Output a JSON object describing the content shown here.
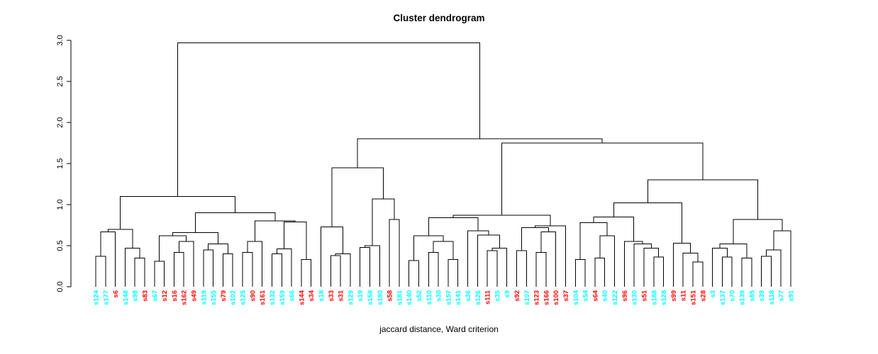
{
  "chart_data": {
    "type": "dendrogram",
    "title": "Cluster dendrogram",
    "xlabel": "jaccard distance, Ward criterion",
    "ylabel": "",
    "ylim": [
      0,
      3
    ],
    "yticks": [
      0,
      0.5,
      1,
      1.5,
      2,
      2.5,
      3
    ],
    "grid": false,
    "line_color": "#000000",
    "label_colors": {
      "group1": "#FF0000",
      "group2": "#00FFFF"
    },
    "leaves": [
      {
        "label": "s124",
        "color": "#00FFFF"
      },
      {
        "label": "s177",
        "color": "#00FFFF"
      },
      {
        "label": "s6",
        "color": "#FF0000"
      },
      {
        "label": "s148",
        "color": "#00FFFF"
      },
      {
        "label": "s98",
        "color": "#00FFFF"
      },
      {
        "label": "s83",
        "color": "#FF0000"
      },
      {
        "label": "s67",
        "color": "#00FFFF"
      },
      {
        "label": "s12",
        "color": "#FF0000"
      },
      {
        "label": "s16",
        "color": "#FF0000"
      },
      {
        "label": "s162",
        "color": "#FF0000"
      },
      {
        "label": "s49",
        "color": "#FF0000"
      },
      {
        "label": "s119",
        "color": "#00FFFF"
      },
      {
        "label": "s155",
        "color": "#00FFFF"
      },
      {
        "label": "s79",
        "color": "#FF0000"
      },
      {
        "label": "s102",
        "color": "#00FFFF"
      },
      {
        "label": "s125",
        "color": "#00FFFF"
      },
      {
        "label": "s90",
        "color": "#FF0000"
      },
      {
        "label": "s161",
        "color": "#FF0000"
      },
      {
        "label": "s132",
        "color": "#00FFFF"
      },
      {
        "label": "s159",
        "color": "#00FFFF"
      },
      {
        "label": "s66",
        "color": "#00FFFF"
      },
      {
        "label": "s144",
        "color": "#FF0000"
      },
      {
        "label": "s34",
        "color": "#FF0000"
      },
      {
        "label": "s18",
        "color": "#00FFFF"
      },
      {
        "label": "s33",
        "color": "#FF0000"
      },
      {
        "label": "s31",
        "color": "#FF0000"
      },
      {
        "label": "s129",
        "color": "#00FFFF"
      },
      {
        "label": "s19",
        "color": "#00FFFF"
      },
      {
        "label": "s158",
        "color": "#00FFFF"
      },
      {
        "label": "s180",
        "color": "#00FFFF"
      },
      {
        "label": "s58",
        "color": "#FF0000"
      },
      {
        "label": "s181",
        "color": "#00FFFF"
      },
      {
        "label": "s140",
        "color": "#00FFFF"
      },
      {
        "label": "s52",
        "color": "#00FFFF"
      },
      {
        "label": "s110",
        "color": "#00FFFF"
      },
      {
        "label": "s30",
        "color": "#00FFFF"
      },
      {
        "label": "s157",
        "color": "#00FFFF"
      },
      {
        "label": "s141",
        "color": "#00FFFF"
      },
      {
        "label": "s36",
        "color": "#00FFFF"
      },
      {
        "label": "s126",
        "color": "#00FFFF"
      },
      {
        "label": "s111",
        "color": "#FF0000"
      },
      {
        "label": "s35",
        "color": "#00FFFF"
      },
      {
        "label": "s9",
        "color": "#00FFFF"
      },
      {
        "label": "s92",
        "color": "#FF0000"
      },
      {
        "label": "s107",
        "color": "#00FFFF"
      },
      {
        "label": "s123",
        "color": "#FF0000"
      },
      {
        "label": "s166",
        "color": "#FF0000"
      },
      {
        "label": "s100",
        "color": "#FF0000"
      },
      {
        "label": "s37",
        "color": "#FF0000"
      },
      {
        "label": "s104",
        "color": "#00FFFF"
      },
      {
        "label": "s54",
        "color": "#00FFFF"
      },
      {
        "label": "s64",
        "color": "#FF0000"
      },
      {
        "label": "s40",
        "color": "#00FFFF"
      },
      {
        "label": "s122",
        "color": "#00FFFF"
      },
      {
        "label": "s96",
        "color": "#FF0000"
      },
      {
        "label": "s130",
        "color": "#00FFFF"
      },
      {
        "label": "s51",
        "color": "#FF0000"
      },
      {
        "label": "s188",
        "color": "#00FFFF"
      },
      {
        "label": "s128",
        "color": "#00FFFF"
      },
      {
        "label": "s99",
        "color": "#FF0000"
      },
      {
        "label": "s11",
        "color": "#FF0000"
      },
      {
        "label": "s151",
        "color": "#FF0000"
      },
      {
        "label": "s28",
        "color": "#FF0000"
      },
      {
        "label": "s3",
        "color": "#00FFFF"
      },
      {
        "label": "s137",
        "color": "#00FFFF"
      },
      {
        "label": "s70",
        "color": "#00FFFF"
      },
      {
        "label": "s139",
        "color": "#00FFFF"
      },
      {
        "label": "s85",
        "color": "#00FFFF"
      },
      {
        "label": "s39",
        "color": "#00FFFF"
      },
      {
        "label": "s118",
        "color": "#00FFFF"
      },
      {
        "label": "s77",
        "color": "#00FFFF"
      },
      {
        "label": "s91",
        "color": "#00FFFF"
      }
    ],
    "tree": [
      2.97,
      [
        1.1,
        [
          0.7,
          [
            0.67,
            [
              0.37,
              0,
              1
            ],
            2
          ],
          [
            0.47,
            3,
            [
              0.35,
              4,
              5
            ]
          ]
        ],
        [
          0.9,
          [
            0.66,
            [
              0.62,
              [
                0.31,
                6,
                7
              ],
              [
                0.55,
                [
                  0.42,
                  8,
                  9
                ],
                10
              ]
            ],
            [
              0.52,
              [
                0.45,
                11,
                12
              ],
              [
                0.4,
                13,
                14
              ]
            ]
          ],
          [
            0.8,
            [
              0.55,
              [
                0.42,
                15,
                16
              ],
              17
            ],
            [
              0.79,
              [
                0.46,
                [
                  0.4,
                  18,
                  19
                ],
                20
              ],
              [
                0.33,
                21,
                22
              ]
            ]
          ]
        ]
      ],
      [
        1.8,
        [
          1.45,
          [
            0.73,
            23,
            [
              0.4,
              [
                0.38,
                24,
                25
              ],
              26
            ]
          ],
          [
            1.07,
            [
              0.5,
              [
                0.48,
                27,
                28
              ],
              29
            ],
            [
              0.82,
              30,
              31
            ]
          ]
        ],
        [
          1.75,
          [
            0.87,
            [
              0.84,
              [
                0.62,
                [
                  0.32,
                  32,
                  33
                ],
                [
                  0.55,
                  [
                    0.42,
                    34,
                    35
                  ],
                  [
                    0.33,
                    36,
                    37
                  ]
                ]
              ],
              [
                0.68,
                38,
                [
                  0.63,
                  39,
                  [
                    0.47,
                    [
                      0.44,
                      40,
                      41
                    ],
                    42
                  ]
                ]
              ]
            ],
            [
              0.74,
              [
                0.72,
                [
                  0.44,
                  43,
                  44
                ],
                [
                  0.67,
                  [
                    0.42,
                    45,
                    46
                  ],
                  47
                ]
              ],
              48
            ]
          ],
          [
            1.3,
            [
              1.02,
              [
                0.85,
                [
                  0.78,
                  [
                    0.33,
                    49,
                    50
                  ],
                  [
                    0.62,
                    [
                      0.35,
                      51,
                      52
                    ],
                    53
                  ]
                ],
                [
                  0.55,
                  54,
                  [
                    0.52,
                    55,
                    [
                      0.47,
                      56,
                      [
                        0.36,
                        57,
                        58
                      ]
                    ]
                  ]
                ]
              ],
              [
                0.53,
                59,
                [
                  0.41,
                  60,
                  [
                    0.3,
                    61,
                    62
                  ]
                ]
              ]
            ],
            [
              0.82,
              [
                0.52,
                [
                  0.47,
                  63,
                  [
                    0.36,
                    64,
                    65
                  ]
                ],
                [
                  0.35,
                  66,
                  67
                ]
              ],
              [
                0.68,
                [
                  0.45,
                  [
                    0.37,
                    68,
                    69
                  ],
                  70
                ],
                71
              ]
            ]
          ]
        ]
      ]
    ]
  }
}
